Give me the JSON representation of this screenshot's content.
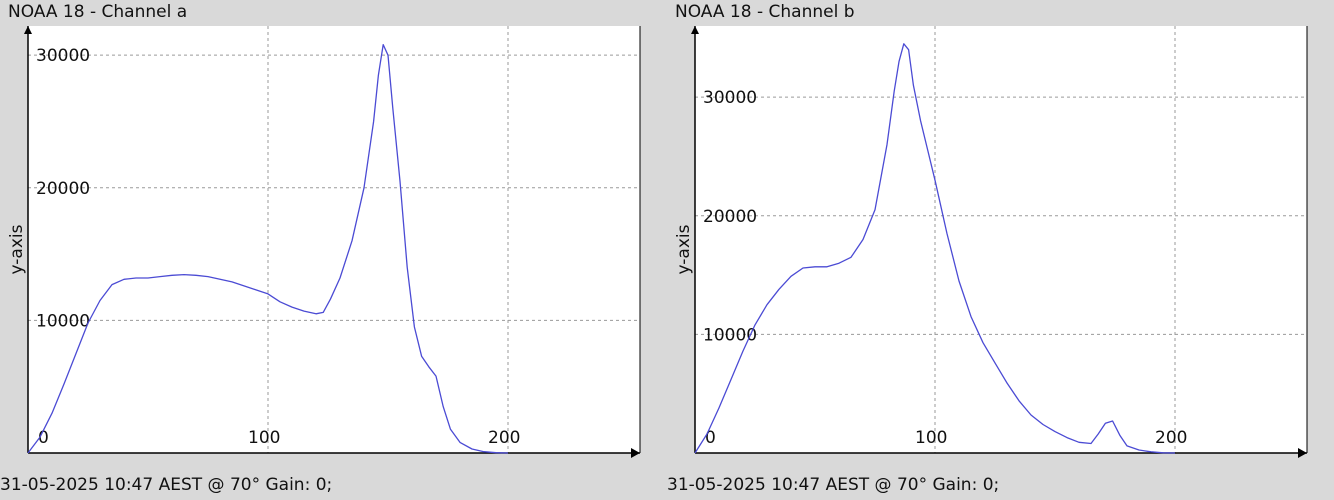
{
  "colors": {
    "background": "#d9d9d9",
    "plot_bg": "#ffffff",
    "line": "#4b4bd4",
    "grid": "#9a9a9a",
    "axis": "#000000"
  },
  "chart_data": [
    {
      "type": "line",
      "title": "NOAA 18 - Channel a",
      "footer": "31-05-2025 10:47 AEST @ 70° Gain: 0;",
      "xlabel": "",
      "ylabel": "y-axis",
      "xlim": [
        0,
        255
      ],
      "ylim": [
        0,
        32200
      ],
      "xticks": [
        0,
        100,
        200
      ],
      "yticks": [
        10000,
        20000,
        30000
      ],
      "grid": true,
      "series": [
        {
          "x": [
            0,
            5,
            10,
            15,
            20,
            25,
            30,
            35,
            40,
            45,
            50,
            55,
            60,
            65,
            70,
            75,
            80,
            85,
            90,
            95,
            100,
            105,
            110,
            115,
            120,
            123,
            126,
            130,
            135,
            140,
            144,
            146,
            148,
            150,
            152,
            155,
            158,
            161,
            164,
            167,
            170,
            173,
            176,
            180,
            185,
            190,
            195,
            200
          ],
          "y": [
            0,
            1200,
            3000,
            5200,
            7500,
            9800,
            11500,
            12700,
            13100,
            13200,
            13200,
            13300,
            13400,
            13450,
            13400,
            13300,
            13100,
            12900,
            12600,
            12300,
            12000,
            11400,
            11000,
            10700,
            10500,
            10600,
            11600,
            13200,
            16000,
            20000,
            25000,
            28500,
            30800,
            30000,
            26000,
            20500,
            14000,
            9500,
            7300,
            6500,
            5800,
            3500,
            1800,
            800,
            300,
            100,
            20,
            0
          ]
        }
      ]
    },
    {
      "type": "line",
      "title": "NOAA 18 - Channel b",
      "footer": "31-05-2025 10:47 AEST @ 70° Gain: 0;",
      "xlabel": "",
      "ylabel": "y-axis",
      "xlim": [
        0,
        255
      ],
      "ylim": [
        0,
        36000
      ],
      "xticks": [
        0,
        100,
        200
      ],
      "yticks": [
        10000,
        20000,
        30000
      ],
      "grid": true,
      "series": [
        {
          "x": [
            0,
            5,
            10,
            15,
            20,
            25,
            30,
            35,
            40,
            45,
            50,
            55,
            60,
            65,
            70,
            75,
            80,
            83,
            85,
            87,
            89,
            91,
            94,
            97,
            100,
            105,
            110,
            115,
            120,
            125,
            130,
            135,
            140,
            145,
            150,
            155,
            160,
            165,
            168,
            171,
            174,
            177,
            180,
            185,
            190,
            195,
            200
          ],
          "y": [
            0,
            1600,
            3800,
            6200,
            8600,
            10800,
            12500,
            13800,
            14900,
            15600,
            15700,
            15700,
            16000,
            16500,
            18000,
            20500,
            26000,
            30500,
            33000,
            34500,
            34000,
            31000,
            28000,
            25500,
            23000,
            18500,
            14500,
            11500,
            9300,
            7600,
            5900,
            4400,
            3200,
            2400,
            1800,
            1300,
            900,
            800,
            1600,
            2500,
            2700,
            1500,
            600,
            250,
            100,
            20,
            0
          ]
        }
      ]
    }
  ]
}
